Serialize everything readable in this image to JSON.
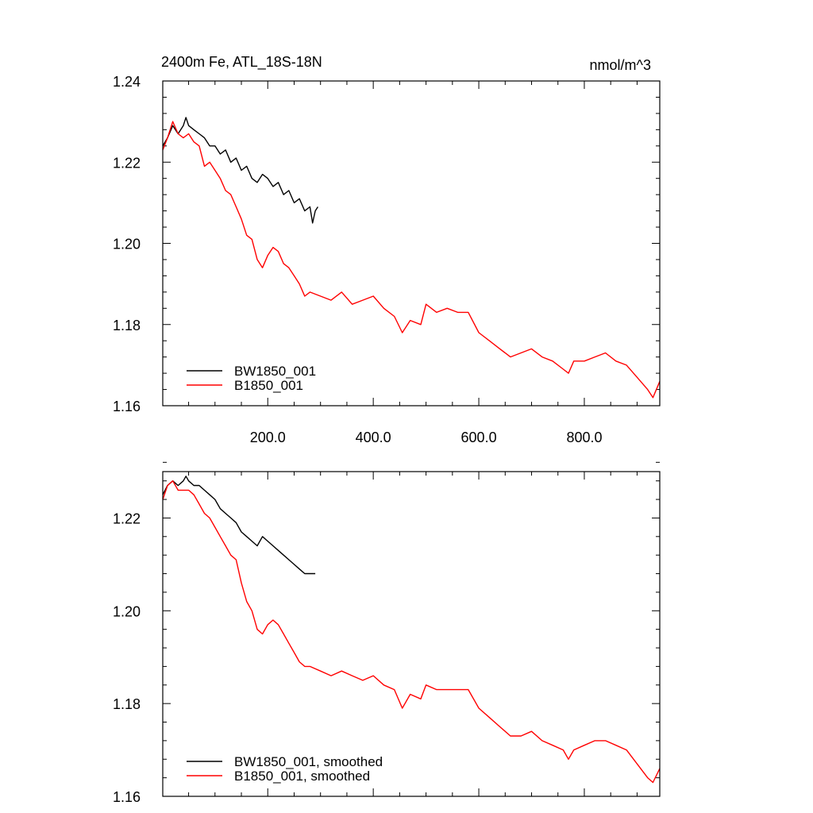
{
  "chart_data": [
    {
      "type": "line",
      "title": "2400m Fe, ATL_18S-18N",
      "units": "nmol/m^3",
      "xlim": [
        1,
        943
      ],
      "ylim": [
        1.16,
        1.24
      ],
      "xticks": [
        "200.0",
        "400.0",
        "600.0",
        "800.0"
      ],
      "yticks": [
        "1.16",
        "1.18",
        "1.20",
        "1.22",
        "1.24"
      ],
      "legend_position": "bottom-left",
      "series": [
        {
          "name": "BW1850_001",
          "color": "#000000",
          "x": [
            1,
            10,
            20,
            30,
            40,
            45,
            50,
            60,
            70,
            80,
            90,
            100,
            110,
            120,
            130,
            140,
            150,
            160,
            170,
            180,
            190,
            200,
            210,
            220,
            230,
            240,
            250,
            260,
            270,
            280,
            285,
            290,
            295
          ],
          "y": [
            1.224,
            1.226,
            1.229,
            1.227,
            1.229,
            1.231,
            1.229,
            1.228,
            1.227,
            1.226,
            1.224,
            1.224,
            1.222,
            1.223,
            1.22,
            1.221,
            1.218,
            1.219,
            1.216,
            1.215,
            1.217,
            1.216,
            1.214,
            1.215,
            1.212,
            1.213,
            1.21,
            1.211,
            1.208,
            1.209,
            1.205,
            1.208,
            1.209
          ]
        },
        {
          "name": "B1850_001",
          "color": "#ff0000",
          "x": [
            1,
            10,
            20,
            30,
            40,
            50,
            60,
            70,
            80,
            90,
            100,
            110,
            120,
            130,
            140,
            150,
            160,
            170,
            180,
            190,
            200,
            210,
            220,
            230,
            240,
            250,
            260,
            270,
            280,
            300,
            320,
            340,
            360,
            380,
            400,
            420,
            440,
            455,
            470,
            490,
            500,
            520,
            540,
            560,
            580,
            600,
            620,
            640,
            660,
            680,
            700,
            720,
            740,
            760,
            770,
            780,
            800,
            820,
            840,
            860,
            880,
            900,
            920,
            930,
            943
          ],
          "y": [
            1.223,
            1.226,
            1.23,
            1.227,
            1.226,
            1.227,
            1.225,
            1.224,
            1.219,
            1.22,
            1.218,
            1.216,
            1.213,
            1.212,
            1.209,
            1.206,
            1.202,
            1.201,
            1.196,
            1.194,
            1.197,
            1.199,
            1.198,
            1.195,
            1.194,
            1.192,
            1.19,
            1.187,
            1.188,
            1.187,
            1.186,
            1.188,
            1.185,
            1.186,
            1.187,
            1.184,
            1.182,
            1.178,
            1.181,
            1.18,
            1.185,
            1.183,
            1.184,
            1.183,
            1.183,
            1.178,
            1.176,
            1.174,
            1.172,
            1.173,
            1.174,
            1.172,
            1.171,
            1.169,
            1.168,
            1.171,
            1.171,
            1.172,
            1.173,
            1.171,
            1.17,
            1.167,
            1.164,
            1.162,
            1.166
          ]
        }
      ]
    },
    {
      "type": "line",
      "xlim": [
        1,
        943
      ],
      "ylim": [
        1.16,
        1.23
      ],
      "yticks": [
        "1.16",
        "1.18",
        "1.20",
        "1.22"
      ],
      "legend_position": "bottom-left",
      "series": [
        {
          "name": "BW1850_001, smoothed",
          "color": "#000000",
          "x": [
            1,
            10,
            20,
            30,
            40,
            45,
            50,
            60,
            70,
            80,
            90,
            100,
            110,
            120,
            130,
            140,
            150,
            160,
            170,
            180,
            190,
            200,
            210,
            220,
            230,
            240,
            250,
            260,
            270,
            280,
            285,
            290
          ],
          "y": [
            1.225,
            1.227,
            1.228,
            1.227,
            1.228,
            1.229,
            1.228,
            1.227,
            1.227,
            1.226,
            1.225,
            1.224,
            1.222,
            1.221,
            1.22,
            1.219,
            1.217,
            1.216,
            1.215,
            1.214,
            1.216,
            1.215,
            1.214,
            1.213,
            1.212,
            1.211,
            1.21,
            1.209,
            1.208,
            1.208,
            1.208,
            1.208
          ]
        },
        {
          "name": "B1850_001, smoothed",
          "color": "#ff0000",
          "x": [
            1,
            10,
            20,
            30,
            40,
            50,
            60,
            70,
            80,
            90,
            100,
            110,
            120,
            130,
            140,
            150,
            160,
            170,
            180,
            190,
            200,
            210,
            220,
            230,
            240,
            250,
            260,
            270,
            280,
            300,
            320,
            340,
            360,
            380,
            400,
            420,
            440,
            455,
            470,
            490,
            500,
            520,
            540,
            560,
            580,
            600,
            620,
            640,
            660,
            680,
            700,
            720,
            740,
            760,
            770,
            780,
            800,
            820,
            840,
            860,
            880,
            900,
            920,
            930,
            943
          ],
          "y": [
            1.224,
            1.227,
            1.228,
            1.226,
            1.226,
            1.226,
            1.225,
            1.223,
            1.221,
            1.22,
            1.218,
            1.216,
            1.214,
            1.212,
            1.211,
            1.206,
            1.202,
            1.2,
            1.196,
            1.195,
            1.197,
            1.198,
            1.197,
            1.195,
            1.193,
            1.191,
            1.189,
            1.188,
            1.188,
            1.187,
            1.186,
            1.187,
            1.186,
            1.185,
            1.186,
            1.184,
            1.183,
            1.179,
            1.182,
            1.181,
            1.184,
            1.183,
            1.183,
            1.183,
            1.183,
            1.179,
            1.177,
            1.175,
            1.173,
            1.173,
            1.174,
            1.172,
            1.171,
            1.17,
            1.168,
            1.17,
            1.171,
            1.172,
            1.172,
            1.171,
            1.17,
            1.167,
            1.164,
            1.163,
            1.166
          ]
        }
      ]
    }
  ]
}
